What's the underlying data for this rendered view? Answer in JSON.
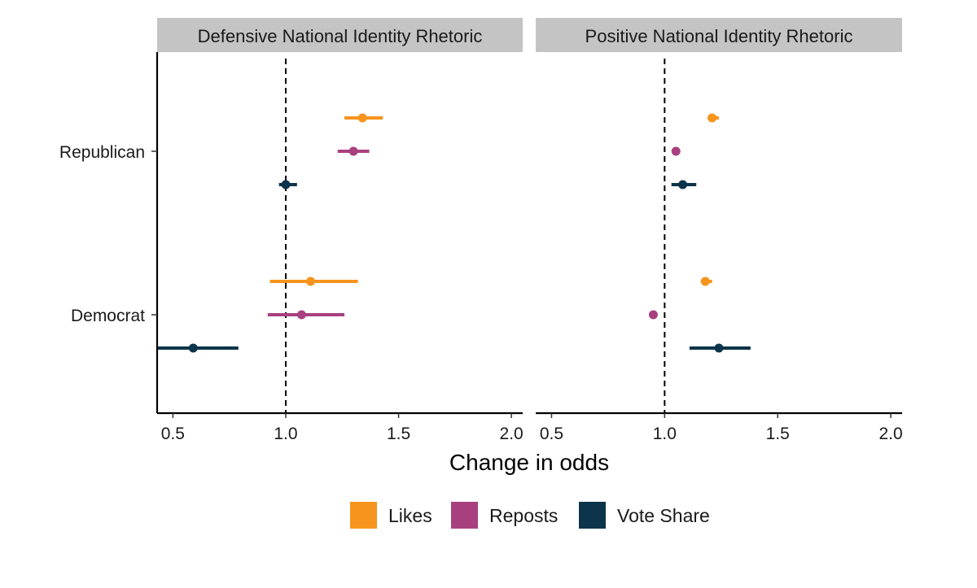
{
  "chart_data": {
    "type": "forest",
    "xlabel": "Change in odds",
    "xlim": [
      0.43,
      2.05
    ],
    "xticks": [
      0.5,
      1.0,
      1.5,
      2.0
    ],
    "xtick_labels": [
      "0.5",
      "1.0",
      "1.5",
      "2.0"
    ],
    "reference_line": 1.0,
    "categories": [
      "Republican",
      "Democrat"
    ],
    "panels": [
      {
        "title": "Defensive National Identity Rhetoric",
        "series": [
          {
            "name": "Likes",
            "estimates": [
              1.34,
              1.11
            ],
            "lower": [
              1.26,
              0.93
            ],
            "upper": [
              1.43,
              1.32
            ]
          },
          {
            "name": "Reposts",
            "estimates": [
              1.3,
              1.07
            ],
            "lower": [
              1.23,
              0.92
            ],
            "upper": [
              1.37,
              1.26
            ]
          },
          {
            "name": "Vote Share",
            "estimates": [
              1.0,
              0.59
            ],
            "lower": [
              0.97,
              0.43
            ],
            "upper": [
              1.05,
              0.79
            ]
          }
        ]
      },
      {
        "title": "Positive National Identity Rhetoric",
        "series": [
          {
            "name": "Likes",
            "estimates": [
              1.21,
              1.18
            ],
            "lower": [
              1.19,
              1.16
            ],
            "upper": [
              1.24,
              1.21
            ]
          },
          {
            "name": "Reposts",
            "estimates": [
              1.05,
              0.95
            ],
            "lower": [
              1.04,
              0.94
            ],
            "upper": [
              1.06,
              0.96
            ]
          },
          {
            "name": "Vote Share",
            "estimates": [
              1.08,
              1.24
            ],
            "lower": [
              1.03,
              1.11
            ],
            "upper": [
              1.14,
              1.38
            ]
          }
        ]
      }
    ],
    "legend": {
      "position": "bottom",
      "items": [
        {
          "name": "Likes",
          "color": "#F7941D"
        },
        {
          "name": "Reposts",
          "color": "#A8407F"
        },
        {
          "name": "Vote Share",
          "color": "#0C344B"
        }
      ]
    },
    "grid": false
  }
}
